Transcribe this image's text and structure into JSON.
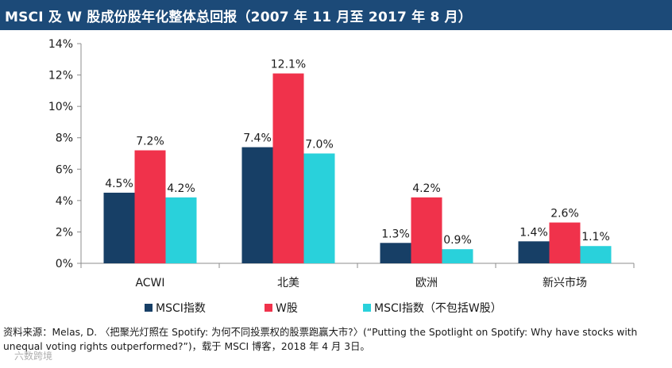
{
  "header": {
    "title": "MSCI 及 W 股成份股年化整体总回报（2007 年 11 月至 2017 年 8 月）"
  },
  "chart_data": {
    "type": "bar",
    "categories": [
      "ACWI",
      "北美",
      "欧洲",
      "新兴市场"
    ],
    "series": [
      {
        "name": "MSCI指数",
        "color": "#173f66",
        "values": [
          4.5,
          7.4,
          1.3,
          1.4
        ],
        "labels": [
          "4.5%",
          "7.4%",
          "1.3%",
          "1.4%"
        ]
      },
      {
        "name": "W股",
        "color": "#f0324b",
        "values": [
          7.2,
          12.1,
          4.2,
          2.6
        ],
        "labels": [
          "7.2%",
          "12.1%",
          "4.2%",
          "2.6%"
        ]
      },
      {
        "name": "MSCI指数（不包括W股）",
        "color": "#29d1db",
        "values": [
          4.2,
          7.0,
          0.9,
          1.1
        ],
        "labels": [
          "4.2%",
          "7.0%",
          "0.9%",
          "1.1%"
        ]
      }
    ],
    "y_ticks": [
      {
        "value": 0,
        "label": "0%"
      },
      {
        "value": 2,
        "label": "2%"
      },
      {
        "value": 4,
        "label": "4%"
      },
      {
        "value": 6,
        "label": "6%"
      },
      {
        "value": 8,
        "label": "8%"
      },
      {
        "value": 10,
        "label": "10%"
      },
      {
        "value": 12,
        "label": "12%"
      },
      {
        "value": 14,
        "label": "14%"
      }
    ],
    "ylim": [
      0,
      14
    ],
    "unit": "%",
    "legend_position": "bottom"
  },
  "source": {
    "text": "资料来源：Melas, D. 〈把聚光灯照在 Spotify: 为何不同投票权的股票跑赢大市?〉(“Putting the Spotlight on Spotify: Why have stocks with unequal voting rights outperformed?”)，载于 MSCI 博客，2018 年 4 月 3日。"
  },
  "watermark": {
    "text": "六数跨境"
  }
}
